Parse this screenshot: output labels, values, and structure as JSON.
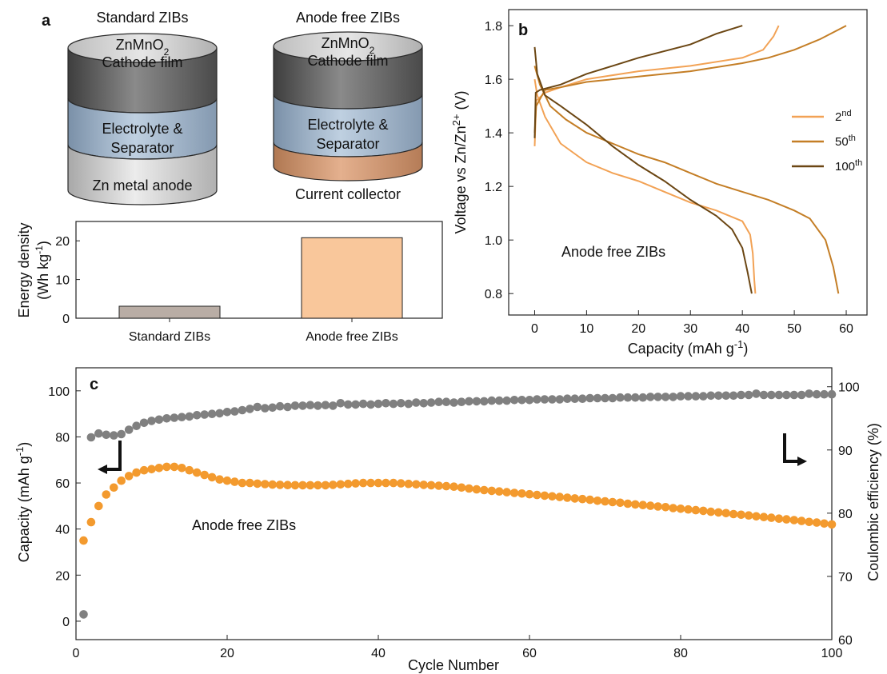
{
  "colors": {
    "orange": "#f39a2e",
    "gray": "#808080",
    "light": "#f2a255",
    "mid": "#c47e26",
    "dark": "#6b4613",
    "barStd": "#b9ada5",
    "barAF": "#f9c79b"
  },
  "panel_a": {
    "letter": "a",
    "standard": {
      "title": "Standard ZIBs",
      "cathode_l1": "ZnMnO",
      "cathode_sub": "2",
      "cathode_l2": "Cathode film",
      "electrolyte_l1": "Electrolyte &",
      "electrolyte_l2": "Separator",
      "base": "Zn metal anode"
    },
    "anode_free": {
      "title": "Anode free ZIBs",
      "cathode_l1": "ZnMnO",
      "cathode_sub": "2",
      "cathode_l2": "Cathode film",
      "electrolyte_l1": "Electrolyte &",
      "electrolyte_l2": "Separator",
      "base": "Current collector"
    }
  },
  "chart_data": [
    {
      "id": "energy-density",
      "type": "bar",
      "ylabel_line1": "Energy density",
      "ylabel_line2": "(Wh kg",
      "ylabel_sup": "-1",
      "ylabel_close": ")",
      "categories": [
        "Standard ZIBs",
        "Anode free ZIBs"
      ],
      "values": [
        3.1,
        20.8
      ],
      "ylim": [
        0,
        25
      ],
      "yticks": [
        0,
        10,
        20
      ]
    },
    {
      "id": "voltage-profiles",
      "type": "line",
      "letter": "b",
      "xlabel_main": "Capacity (mAh g",
      "xlabel_sup": "-1",
      "xlabel_close": ")",
      "ylabel_main": "Voltage vs Zn/Zn",
      "ylabel_sup": "2+",
      "ylabel_close": " (V)",
      "annotation": "Anode free ZIBs",
      "xlim": [
        -5,
        64
      ],
      "ylim": [
        0.72,
        1.86
      ],
      "xticks": [
        0,
        10,
        20,
        30,
        40,
        50,
        60
      ],
      "yticks": [
        0.8,
        1.0,
        1.2,
        1.4,
        1.6,
        1.8
      ],
      "legend_position": "right",
      "series": [
        {
          "name": "2",
          "sup": "nd",
          "discharge": [
            [
              0,
              1.6
            ],
            [
              0.5,
              1.54
            ],
            [
              2,
              1.46
            ],
            [
              5,
              1.36
            ],
            [
              10,
              1.29
            ],
            [
              15,
              1.25
            ],
            [
              20,
              1.22
            ],
            [
              25,
              1.18
            ],
            [
              30,
              1.14
            ],
            [
              35,
              1.11
            ],
            [
              40,
              1.07
            ],
            [
              41.5,
              1.02
            ],
            [
              42,
              0.95
            ],
            [
              42.3,
              0.85
            ],
            [
              42.5,
              0.8
            ]
          ],
          "charge": [
            [
              0,
              1.35
            ],
            [
              0.3,
              1.52
            ],
            [
              2,
              1.55
            ],
            [
              5,
              1.57
            ],
            [
              10,
              1.6
            ],
            [
              20,
              1.63
            ],
            [
              30,
              1.65
            ],
            [
              40,
              1.68
            ],
            [
              44,
              1.71
            ],
            [
              46,
              1.76
            ],
            [
              47,
              1.8
            ]
          ]
        },
        {
          "name": "50",
          "sup": "th",
          "discharge": [
            [
              0,
              1.65
            ],
            [
              1,
              1.58
            ],
            [
              3,
              1.5
            ],
            [
              6,
              1.45
            ],
            [
              10,
              1.4
            ],
            [
              15,
              1.36
            ],
            [
              20,
              1.32
            ],
            [
              25,
              1.29
            ],
            [
              30,
              1.25
            ],
            [
              35,
              1.21
            ],
            [
              40,
              1.18
            ],
            [
              45,
              1.15
            ],
            [
              50,
              1.11
            ],
            [
              53,
              1.08
            ],
            [
              56,
              1.0
            ],
            [
              57.5,
              0.9
            ],
            [
              58.5,
              0.8
            ]
          ],
          "charge": [
            [
              0,
              1.4
            ],
            [
              0.3,
              1.5
            ],
            [
              2,
              1.56
            ],
            [
              5,
              1.57
            ],
            [
              10,
              1.59
            ],
            [
              20,
              1.61
            ],
            [
              30,
              1.63
            ],
            [
              40,
              1.66
            ],
            [
              45,
              1.68
            ],
            [
              50,
              1.71
            ],
            [
              55,
              1.75
            ],
            [
              60,
              1.8
            ]
          ]
        },
        {
          "name": "100",
          "sup": "th",
          "discharge": [
            [
              0,
              1.72
            ],
            [
              0.5,
              1.62
            ],
            [
              2,
              1.54
            ],
            [
              5,
              1.5
            ],
            [
              10,
              1.43
            ],
            [
              15,
              1.35
            ],
            [
              20,
              1.28
            ],
            [
              25,
              1.22
            ],
            [
              30,
              1.15
            ],
            [
              35,
              1.09
            ],
            [
              38,
              1.04
            ],
            [
              40,
              0.97
            ],
            [
              41,
              0.88
            ],
            [
              41.8,
              0.8
            ]
          ],
          "charge": [
            [
              0,
              1.38
            ],
            [
              0.2,
              1.55
            ],
            [
              1,
              1.56
            ],
            [
              5,
              1.58
            ],
            [
              10,
              1.62
            ],
            [
              15,
              1.65
            ],
            [
              20,
              1.68
            ],
            [
              30,
              1.73
            ],
            [
              35,
              1.77
            ],
            [
              40,
              1.8
            ]
          ]
        }
      ]
    },
    {
      "id": "cycling",
      "type": "scatter",
      "letter": "c",
      "xlabel": "Cycle Number",
      "ylabel_left_main": "Capacity (mAh g",
      "ylabel_left_sup": "-1",
      "ylabel_left_close": ")",
      "ylabel_right": "Coulombic efficiency (%)",
      "annotation": "Anode free ZIBs",
      "xlim": [
        0,
        100
      ],
      "ylim_left": [
        -8,
        110
      ],
      "ylim_right": [
        60,
        103
      ],
      "xticks": [
        0,
        20,
        40,
        60,
        80,
        100
      ],
      "yticks_left": [
        0,
        20,
        40,
        60,
        80,
        100
      ],
      "yticks_right": [
        60,
        70,
        80,
        90,
        100
      ],
      "capacity_x": [
        1,
        2,
        3,
        4,
        5,
        6,
        7,
        8,
        9,
        10,
        11,
        12,
        13,
        14,
        15,
        16,
        17,
        18,
        19,
        20,
        21,
        22,
        23,
        24,
        25,
        26,
        27,
        28,
        29,
        30,
        31,
        32,
        33,
        34,
        35,
        36,
        37,
        38,
        39,
        40,
        41,
        42,
        43,
        44,
        45,
        46,
        47,
        48,
        49,
        50,
        51,
        52,
        53,
        54,
        55,
        56,
        57,
        58,
        59,
        60,
        61,
        62,
        63,
        64,
        65,
        66,
        67,
        68,
        69,
        70,
        71,
        72,
        73,
        74,
        75,
        76,
        77,
        78,
        79,
        80,
        81,
        82,
        83,
        84,
        85,
        86,
        87,
        88,
        89,
        90,
        91,
        92,
        93,
        94,
        95,
        96,
        97,
        98,
        99,
        100
      ],
      "capacity": [
        35,
        43,
        50,
        55,
        58,
        61,
        63,
        64.5,
        65.5,
        66,
        66.5,
        67,
        67,
        66.5,
        65.5,
        64.5,
        63.5,
        62.5,
        61.5,
        61,
        60.5,
        60,
        60,
        59.7,
        59.5,
        59.3,
        59.2,
        59.1,
        59,
        59,
        59,
        59,
        59,
        59.2,
        59.4,
        59.6,
        59.8,
        60,
        60,
        60,
        60,
        60,
        59.8,
        59.6,
        59.4,
        59.2,
        59,
        58.8,
        58.6,
        58.4,
        58,
        57.6,
        57.2,
        56.9,
        56.6,
        56.3,
        56,
        55.7,
        55.4,
        55.1,
        54.8,
        54.5,
        54.2,
        53.9,
        53.6,
        53.3,
        53,
        52.7,
        52.3,
        52,
        51.7,
        51.4,
        51,
        50.7,
        50.4,
        50.1,
        49.8,
        49.5,
        49.1,
        48.8,
        48.5,
        48.2,
        47.9,
        47.5,
        47.2,
        46.9,
        46.5,
        46.2,
        45.9,
        45.5,
        45.2,
        44.9,
        44.5,
        44.2,
        43.9,
        43.5,
        43.1,
        42.8,
        42.4,
        42
      ],
      "ce_x": [
        1,
        2,
        3,
        4,
        5,
        6,
        7,
        8,
        9,
        10,
        11,
        12,
        13,
        14,
        15,
        16,
        17,
        18,
        19,
        20,
        21,
        22,
        23,
        24,
        25,
        26,
        27,
        28,
        29,
        30,
        31,
        32,
        33,
        34,
        35,
        36,
        37,
        38,
        39,
        40,
        41,
        42,
        43,
        44,
        45,
        46,
        47,
        48,
        49,
        50,
        51,
        52,
        53,
        54,
        55,
        56,
        57,
        58,
        59,
        60,
        61,
        62,
        63,
        64,
        65,
        66,
        67,
        68,
        69,
        70,
        71,
        72,
        73,
        74,
        75,
        76,
        77,
        78,
        79,
        80,
        81,
        82,
        83,
        84,
        85,
        86,
        87,
        88,
        89,
        90,
        91,
        92,
        93,
        94,
        95,
        96,
        97,
        98,
        99,
        100
      ],
      "ce": [
        64,
        92,
        92.6,
        92.4,
        92.3,
        92.5,
        93.2,
        93.8,
        94.3,
        94.6,
        94.8,
        95,
        95.1,
        95.2,
        95.3,
        95.5,
        95.6,
        95.7,
        95.8,
        96,
        96.1,
        96.3,
        96.5,
        96.8,
        96.6,
        96.7,
        96.9,
        96.8,
        97,
        97,
        97.1,
        97,
        97.1,
        97,
        97.4,
        97.2,
        97.2,
        97.3,
        97.2,
        97.3,
        97.4,
        97.3,
        97.4,
        97.3,
        97.5,
        97.4,
        97.5,
        97.6,
        97.6,
        97.5,
        97.6,
        97.7,
        97.7,
        97.7,
        97.8,
        97.8,
        97.8,
        97.9,
        97.9,
        97.9,
        98,
        98,
        98,
        98,
        98.1,
        98.1,
        98.1,
        98.2,
        98.2,
        98.2,
        98.2,
        98.3,
        98.3,
        98.3,
        98.3,
        98.4,
        98.4,
        98.4,
        98.4,
        98.5,
        98.5,
        98.5,
        98.5,
        98.6,
        98.6,
        98.6,
        98.6,
        98.7,
        98.7,
        98.9,
        98.7,
        98.7,
        98.7,
        98.7,
        98.7,
        98.7,
        98.9,
        98.8,
        98.8,
        98.8
      ]
    }
  ]
}
